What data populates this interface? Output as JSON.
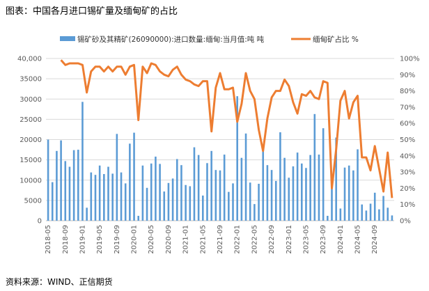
{
  "figure": {
    "title": "图表：中国各月进口锡矿量及缅甸矿的占比",
    "source": "资料来源：WIND、正信期货"
  },
  "chart_data": {
    "type": "bar+line",
    "series": [
      {
        "name": "锡矿砂及其精矿(26090000):进口数量:缅甸:当月值:吨 吨",
        "kind": "bar",
        "axis": "left",
        "color": "#5b9bd5",
        "values": [
          20000,
          9500,
          17200,
          19800,
          14700,
          13300,
          17400,
          17500,
          29300,
          3200,
          11900,
          11300,
          13600,
          11500,
          13300,
          11600,
          21400,
          11900,
          9200,
          19000,
          21700,
          1200,
          13600,
          8100,
          14100,
          15800,
          14000,
          7200,
          9300,
          10400,
          15200,
          13700,
          8800,
          8500,
          18100,
          16200,
          6200,
          14200,
          17200,
          12500,
          12400,
          16300,
          7100,
          9200,
          30700,
          15500,
          21500,
          9400,
          4100,
          9100,
          17500,
          13700,
          12500,
          9800,
          21800,
          15500,
          10600,
          13400,
          16800,
          14100,
          13000,
          16200,
          26300,
          16300,
          22800,
          1200,
          10200,
          20500,
          3000,
          13100,
          13600,
          12400,
          17600,
          4000,
          2500,
          4200,
          6900,
          2800,
          6100,
          3200,
          1300
        ]
      },
      {
        "name": "缅甸矿占比 %",
        "kind": "line",
        "axis": "right",
        "color": "#ed7d31",
        "values": [
          null,
          null,
          null,
          99,
          96,
          97,
          97,
          97,
          96,
          79,
          92,
          95,
          95,
          92,
          95,
          92,
          95,
          95,
          90,
          95,
          96,
          62,
          95,
          91,
          97,
          96,
          92,
          90,
          89,
          93,
          95,
          90,
          87,
          86,
          84,
          83,
          86,
          86,
          55,
          82,
          91,
          81,
          81,
          82,
          61,
          72,
          91,
          80,
          75,
          56,
          43,
          63,
          76,
          80,
          80,
          87,
          83,
          73,
          66,
          78,
          77,
          80,
          76,
          75,
          86,
          85,
          20,
          44,
          74,
          80,
          63,
          73,
          77,
          39,
          39,
          31,
          46,
          32,
          18,
          42,
          14
        ]
      }
    ],
    "x_start": "2018-05",
    "x_end": "2025-01",
    "x_labels": [
      "2018-05",
      "2018-09",
      "2019-01",
      "2019-05",
      "2019-09",
      "2020-01",
      "2020-05",
      "2020-09",
      "2021-01",
      "2021-05",
      "2021-09",
      "2022-01",
      "2022-05",
      "2022-09",
      "2023-01",
      "2023-05",
      "2023-09",
      "2024-01",
      "2024-05",
      "2024-09"
    ],
    "y_left": {
      "min": 0,
      "max": 40000,
      "ticks": [
        "0",
        "5000",
        "10000",
        "15000",
        "20000",
        "25000",
        "30000",
        "35000",
        "40,000"
      ]
    },
    "y_right": {
      "min": 0,
      "max": 100,
      "ticks": [
        "0%",
        "10%",
        "20%",
        "30%",
        "40%",
        "50%",
        "60%",
        "70%",
        "80%",
        "90%",
        "100%"
      ]
    },
    "grid": true,
    "legend_position": "top"
  }
}
